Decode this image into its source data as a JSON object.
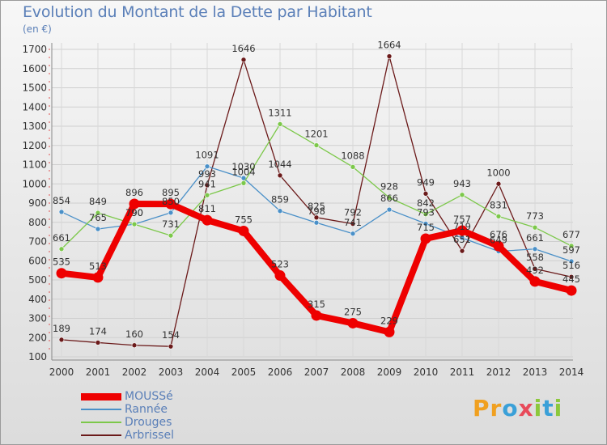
{
  "title": "Evolution du Montant de la Dette par Habitant",
  "unit_label": "(en €)",
  "logo_text": "Proxiti",
  "chart_data": {
    "type": "line",
    "title": "Evolution du Montant de la Dette par Habitant",
    "ylabel": "(en €)",
    "xlabel": "",
    "categories": [
      "2000",
      "2001",
      "2002",
      "2003",
      "2004",
      "2005",
      "2006",
      "2007",
      "2008",
      "2009",
      "2010",
      "2011",
      "2012",
      "2013",
      "2014"
    ],
    "ylim": [
      100,
      1700
    ],
    "yticks": [
      100,
      200,
      300,
      400,
      500,
      600,
      700,
      800,
      900,
      1000,
      1100,
      1200,
      1300,
      1400,
      1500,
      1600,
      1700
    ],
    "grid": true,
    "legend_position": "bottom-left",
    "series": [
      {
        "name": "Arbrissel",
        "color": "#6b1a1a",
        "values": [
          189,
          174,
          160,
          154,
          993,
          1646,
          1044,
          825,
          792,
          1664,
          949,
          651,
          1000,
          558,
          516
        ]
      },
      {
        "name": "Rannée",
        "color": "#4a90c8",
        "values": [
          854,
          765,
          790,
          850,
          1091,
          1030,
          859,
          798,
          741,
          866,
          793,
          719,
          649,
          661,
          597
        ]
      },
      {
        "name": "Drouges",
        "color": "#7cc84a",
        "values": [
          661,
          849,
          790,
          731,
          941,
          1004,
          1311,
          1201,
          1088,
          928,
          842,
          943,
          831,
          773,
          677
        ]
      },
      {
        "name": "MOUSSé",
        "color": "#ee0000",
        "values": [
          535,
          513,
          896,
          895,
          811,
          755,
          523,
          315,
          275,
          229,
          715,
          757,
          676,
          492,
          445
        ]
      }
    ],
    "point_labels": {
      "Arbrissel": [
        "189",
        "174",
        "160",
        "154",
        "993",
        "1646",
        "1044",
        "825",
        "792",
        "1664",
        "949",
        "651",
        "1000",
        "558",
        "516"
      ],
      "Rannée": [
        "854",
        "765",
        "790",
        "850",
        "1091",
        "1030",
        "859",
        "798",
        "741",
        "866",
        "793",
        "719",
        "649",
        "661",
        "597"
      ],
      "Drouges": [
        "661",
        "849",
        "790",
        "731",
        "941",
        "1004",
        "1311",
        "1201",
        "1088",
        "928",
        "842",
        "943",
        "831",
        "773",
        "677"
      ],
      "MOUSSé": [
        "535",
        "513",
        "896",
        "895",
        "811",
        "755",
        "523",
        "315",
        "275",
        "229",
        "715",
        "757",
        "676",
        "492",
        "445"
      ]
    }
  },
  "legend": [
    {
      "name": "MOUSSé",
      "color": "#ee0000",
      "thick": true
    },
    {
      "name": "Rannée",
      "color": "#4a90c8",
      "thick": false
    },
    {
      "name": "Drouges",
      "color": "#7cc84a",
      "thick": false
    },
    {
      "name": "Arbrissel",
      "color": "#6b1a1a",
      "thick": false
    }
  ]
}
